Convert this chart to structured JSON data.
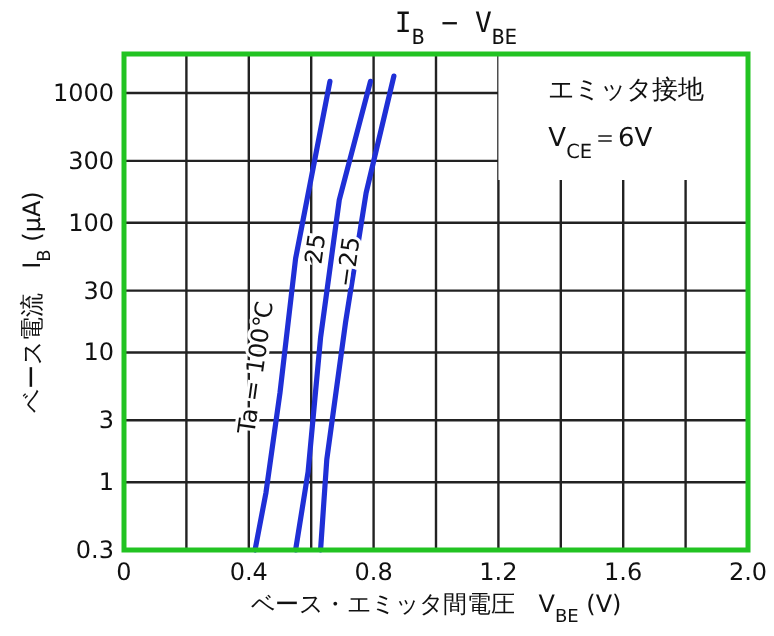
{
  "chart_data": {
    "type": "line",
    "title": "I$_{B}$ − V$_{BE}$",
    "xlabel": "ベース・エミッタ間電圧　V$_{BE}$ (V)",
    "ylabel": "ベース電流　I$_{B}$ (μA)",
    "log": "y",
    "grid": true,
    "legend": false,
    "marker": "none",
    "line_style": "solid",
    "xlim": [
      0,
      2
    ],
    "ylim": [
      0.3,
      2000
    ],
    "xticks": [
      0,
      {
        "value": 0.2,
        "label": null
      },
      0.4,
      {
        "value": 0.6,
        "label": null
      },
      0.8,
      {
        "value": 1.0,
        "label": null
      },
      1.2,
      {
        "value": 1.4,
        "label": null
      },
      1.6,
      {
        "value": 1.8,
        "label": null
      },
      {
        "value": 2,
        "label": "2.0"
      }
    ],
    "yticks": [
      0.3,
      1,
      3,
      10,
      30,
      100,
      300,
      1000
    ],
    "annotations": [
      "エミッタ接地",
      "V$_{CE}$＝6V"
    ],
    "series": [
      {
        "name": "Ta = 100℃",
        "color": "#1f2fd6",
        "x": [
          0.42,
          0.455,
          0.5,
          0.55,
          0.66
        ],
        "values": [
          0.3,
          0.83,
          4.9,
          53,
          1230
        ]
      },
      {
        "name": "25",
        "color": "#1f2fd6",
        "x": [
          0.55,
          0.59,
          0.63,
          0.69,
          0.79
        ],
        "values": [
          0.3,
          1.2,
          13,
          150,
          1230
        ]
      },
      {
        "name": "−25",
        "color": "#1f2fd6",
        "x": [
          0.63,
          0.65,
          0.71,
          0.776,
          0.865
        ],
        "values": [
          0.3,
          1.5,
          17,
          170,
          1350
        ]
      }
    ]
  }
}
